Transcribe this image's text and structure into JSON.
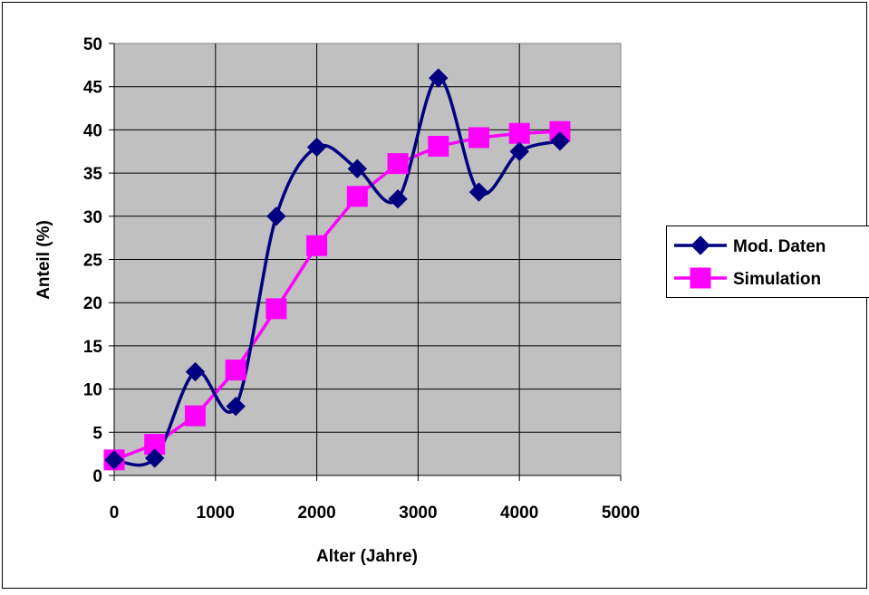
{
  "chart_data": {
    "type": "line",
    "title": "",
    "xlabel": "Alter (Jahre)",
    "ylabel": "Anteil (%)",
    "xlim": [
      0,
      5000
    ],
    "ylim": [
      0,
      50
    ],
    "x_ticks": [
      "0",
      "1000",
      "2000",
      "3000",
      "4000",
      "5000"
    ],
    "y_ticks": [
      "0",
      "5",
      "10",
      "15",
      "20",
      "25",
      "30",
      "35",
      "40",
      "45",
      "50"
    ],
    "grid": true,
    "legend_position": "right",
    "plot_background": "#C0C0C0",
    "series": [
      {
        "name": "Mod. Daten",
        "color": "#000080",
        "marker": "diamond",
        "smooth": true,
        "x": [
          0,
          400,
          800,
          1200,
          1600,
          2000,
          2400,
          2800,
          3200,
          3600,
          4000,
          4400
        ],
        "y": [
          1.8,
          2.0,
          12.0,
          8.0,
          30.0,
          38.0,
          35.5,
          32.0,
          46.0,
          32.8,
          37.5,
          38.7
        ]
      },
      {
        "name": "Simulation",
        "color": "#FF00FF",
        "marker": "square",
        "smooth": false,
        "x": [
          0,
          400,
          800,
          1200,
          1600,
          2000,
          2400,
          2800,
          3200,
          3600,
          4000,
          4400
        ],
        "y": [
          1.8,
          3.6,
          6.9,
          12.2,
          19.3,
          26.6,
          32.3,
          36.1,
          38.1,
          39.1,
          39.6,
          39.8
        ]
      }
    ]
  }
}
